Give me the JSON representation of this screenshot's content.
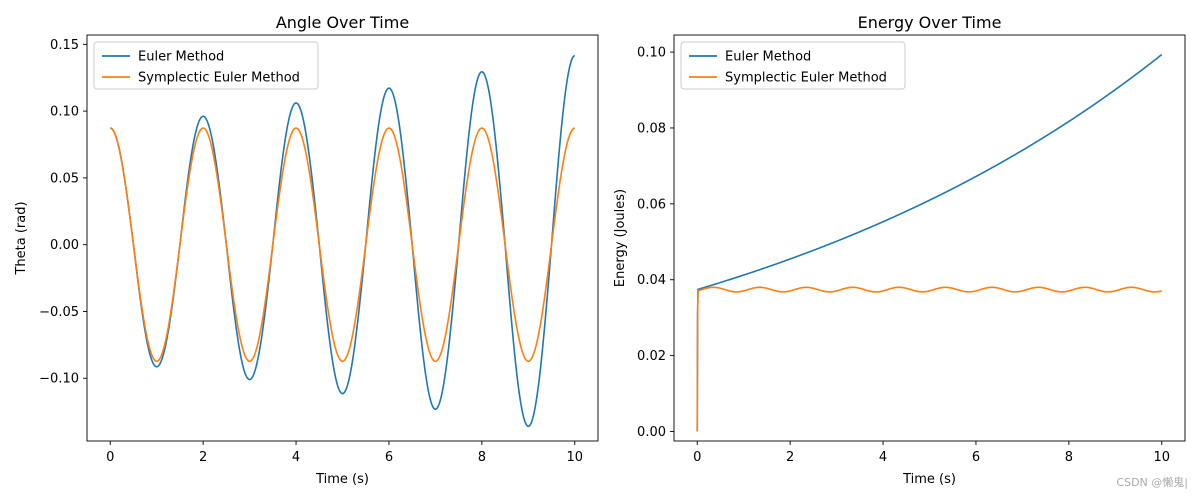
{
  "chart_data": [
    {
      "type": "line",
      "title": "Angle Over Time",
      "xlabel": "Time (s)",
      "ylabel": "Theta (rad)",
      "xlim": [
        -0.5,
        10.5
      ],
      "ylim": [
        -0.147,
        0.157
      ],
      "xticks": [
        0,
        2,
        4,
        6,
        8,
        10
      ],
      "xtick_labels": [
        "0",
        "2",
        "4",
        "6",
        "8",
        "10"
      ],
      "yticks": [
        -0.1,
        -0.05,
        0.0,
        0.05,
        0.1,
        0.15
      ],
      "ytick_labels": [
        "−0.10",
        "−0.05",
        "0.00",
        "0.05",
        "0.10",
        "0.15"
      ],
      "grid": false,
      "legend": "top-left",
      "series": [
        {
          "name": "Euler Method",
          "color": "#1f77b4",
          "x": [
            0,
            0.5,
            1,
            1.5,
            2,
            2.5,
            3,
            3.5,
            4,
            4.5,
            5,
            5.5,
            6,
            6.5,
            7,
            7.5,
            8,
            8.5,
            9,
            9.5,
            10
          ],
          "values": [
            0.0873,
            0.0,
            -0.0914,
            0.0,
            0.0961,
            0.0,
            -0.101,
            0.0,
            0.1061,
            0.0,
            -0.1115,
            0.0,
            0.1172,
            0.0,
            -0.1232,
            0.0,
            0.1294,
            0.0,
            -0.136,
            0.0,
            0.1415
          ]
        },
        {
          "name": "Symplectic Euler Method",
          "color": "#ff7f0e",
          "x": [
            0,
            0.5,
            1,
            1.5,
            2,
            2.5,
            3,
            3.5,
            4,
            4.5,
            5,
            5.5,
            6,
            6.5,
            7,
            7.5,
            8,
            8.5,
            9,
            9.5,
            10
          ],
          "values": [
            0.0873,
            0.0,
            -0.0873,
            0.0,
            0.0873,
            0.0,
            -0.0873,
            0.0,
            0.0873,
            0.0,
            -0.0873,
            0.0,
            0.0873,
            0.0,
            -0.0873,
            0.0,
            0.0873,
            0.0,
            -0.0873,
            0.0,
            0.0873
          ]
        }
      ]
    },
    {
      "type": "line",
      "title": "Energy Over Time",
      "xlabel": "Time (s)",
      "ylabel": "Energy (Joules)",
      "xlim": [
        -0.5,
        10.5
      ],
      "ylim": [
        -0.0025,
        0.1045
      ],
      "xticks": [
        0,
        2,
        4,
        6,
        8,
        10
      ],
      "xtick_labels": [
        "0",
        "2",
        "4",
        "6",
        "8",
        "10"
      ],
      "yticks": [
        0.0,
        0.02,
        0.04,
        0.06,
        0.08,
        0.1
      ],
      "ytick_labels": [
        "0.00",
        "0.02",
        "0.04",
        "0.06",
        "0.08",
        "0.10"
      ],
      "grid": false,
      "legend": "top-left",
      "series": [
        {
          "name": "Euler Method",
          "color": "#1f77b4",
          "x": [
            0,
            0.01,
            1,
            2,
            3,
            4,
            5,
            6,
            7,
            8,
            9,
            10
          ],
          "values": [
            0.0,
            0.0374,
            0.0411,
            0.0452,
            0.0497,
            0.0547,
            0.0603,
            0.0664,
            0.0731,
            0.0806,
            0.0887,
            0.0993
          ]
        },
        {
          "name": "Symplectic Euler Method",
          "color": "#ff7f0e",
          "x": [
            0,
            0.01,
            0.25,
            0.75,
            1.25,
            1.75,
            2.25,
            2.75,
            3.25,
            3.75,
            4.25,
            4.75,
            5.25,
            5.75,
            6.25,
            6.75,
            7.25,
            7.75,
            8.25,
            8.75,
            9.25,
            9.75,
            10
          ],
          "values": [
            0.0,
            0.0374,
            0.0368,
            0.038,
            0.0368,
            0.038,
            0.0368,
            0.038,
            0.0368,
            0.038,
            0.0368,
            0.038,
            0.0368,
            0.038,
            0.0368,
            0.038,
            0.0368,
            0.038,
            0.0368,
            0.038,
            0.0368,
            0.038,
            0.0374
          ]
        }
      ]
    }
  ],
  "watermark": "CSDN @懒鬼|"
}
